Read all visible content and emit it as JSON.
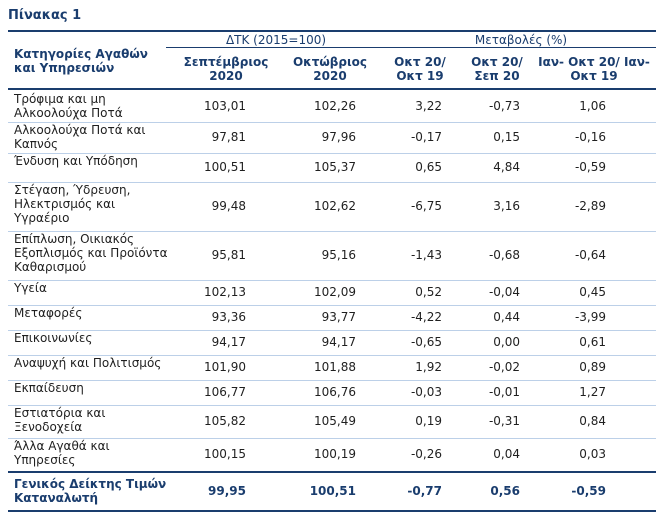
{
  "title": "Πίνακας 1",
  "headers": {
    "category": "Κατηγορίες Αγαθών και Υπηρεσιών",
    "group_index": "ΔΤΚ (2015=100)",
    "group_change": "Μεταβολές (%)",
    "columns": [
      "Σεπτέμβριος 2020",
      "Οκτώβριος 2020",
      "Οκτ 20/ Οκτ 19",
      "Οκτ 20/ Σεπ 20",
      "Ιαν- Οκτ 20/ Ιαν- Οκτ 19"
    ]
  },
  "rows": [
    {
      "label": "Τρόφιμα και μη Αλκοολούχα Ποτά",
      "values": [
        "103,01",
        "102,26",
        "3,22",
        "-0,73",
        "1,06"
      ]
    },
    {
      "label": "Αλκοολούχα Ποτά και Καπνός",
      "values": [
        "97,81",
        "97,96",
        "-0,17",
        "0,15",
        "-0,16"
      ]
    },
    {
      "label": "Ένδυση και Υπόδηση",
      "values": [
        "100,51",
        "105,37",
        "0,65",
        "4,84",
        "-0,59"
      ]
    },
    {
      "label": "Στέγαση, Ύδρευση, Ηλεκτρισμός και Υγραέριο",
      "values": [
        "99,48",
        "102,62",
        "-6,75",
        "3,16",
        "-2,89"
      ]
    },
    {
      "label": "Επίπλωση, Οικιακός Εξοπλισμός και Προϊόντα Καθαρισμού",
      "values": [
        "95,81",
        "95,16",
        "-1,43",
        "-0,68",
        "-0,64"
      ]
    },
    {
      "label": "Υγεία",
      "values": [
        "102,13",
        "102,09",
        "0,52",
        "-0,04",
        "0,45"
      ]
    },
    {
      "label": "Μεταφορές",
      "values": [
        "93,36",
        "93,77",
        "-4,22",
        "0,44",
        "-3,99"
      ]
    },
    {
      "label": "Επικοινωνίες",
      "values": [
        "94,17",
        "94,17",
        "-0,65",
        "0,00",
        "0,61"
      ]
    },
    {
      "label": "Αναψυχή και Πολιτισμός",
      "values": [
        "101,90",
        "101,88",
        "1,92",
        "-0,02",
        "0,89"
      ]
    },
    {
      "label": "Εκπαίδευση",
      "values": [
        "106,77",
        "106,76",
        "-0,03",
        "-0,01",
        "1,27"
      ]
    },
    {
      "label": "Εστιατόρια και Ξενοδοχεία",
      "values": [
        "105,82",
        "105,49",
        "0,19",
        "-0,31",
        "0,84"
      ]
    },
    {
      "label": "Άλλα Αγαθά και Υπηρεσίες",
      "values": [
        "100,15",
        "100,19",
        "-0,26",
        "0,04",
        "0,03"
      ]
    }
  ],
  "total": {
    "label": "Γενικός Δείκτης Τιμών Καταναλωτή",
    "values": [
      "99,95",
      "100,51",
      "-0,77",
      "0,56",
      "-0,59"
    ]
  }
}
